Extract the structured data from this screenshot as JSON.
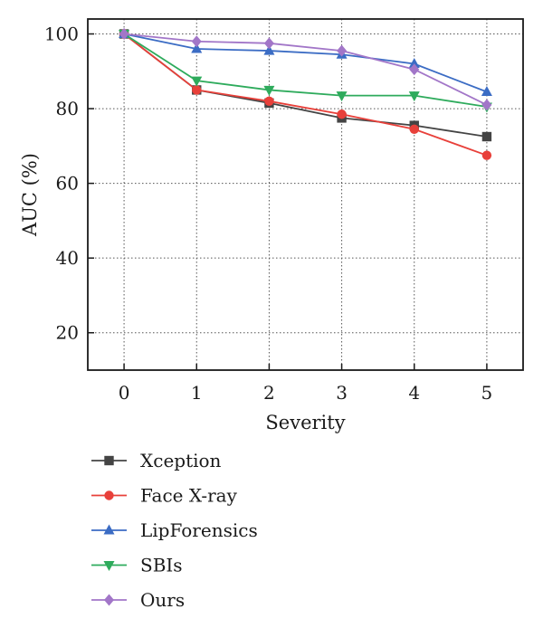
{
  "chart_data": {
    "type": "line",
    "title": "",
    "xlabel": "Severity",
    "ylabel": "AUC (%)",
    "x": [
      0,
      1,
      2,
      3,
      4,
      5
    ],
    "xlim": [
      -0.5,
      5.5
    ],
    "ylim": [
      10,
      104
    ],
    "xticks": [
      "0",
      "1",
      "2",
      "3",
      "4",
      "5"
    ],
    "yticks": [
      20,
      40,
      60,
      80,
      100
    ],
    "grid": true,
    "legend_position": "below",
    "series": [
      {
        "name": "Xception",
        "color": "#444444",
        "marker": "square",
        "values": [
          100,
          85.0,
          81.5,
          77.5,
          75.5,
          72.5
        ]
      },
      {
        "name": "Face X-ray",
        "color": "#e8403a",
        "marker": "circle",
        "values": [
          100,
          85.0,
          82.0,
          78.5,
          74.5,
          67.5
        ]
      },
      {
        "name": "LipForensics",
        "color": "#3b6cc4",
        "marker": "triangle-up",
        "values": [
          100,
          96.0,
          95.5,
          94.5,
          92.0,
          84.5
        ]
      },
      {
        "name": "SBIs",
        "color": "#2eab5c",
        "marker": "triangle-down",
        "values": [
          100,
          87.5,
          85.0,
          83.5,
          83.5,
          80.5
        ]
      },
      {
        "name": "Ours",
        "color": "#a276c8",
        "marker": "diamond",
        "values": [
          100,
          98.0,
          97.5,
          95.5,
          90.5,
          81.0
        ]
      }
    ]
  }
}
